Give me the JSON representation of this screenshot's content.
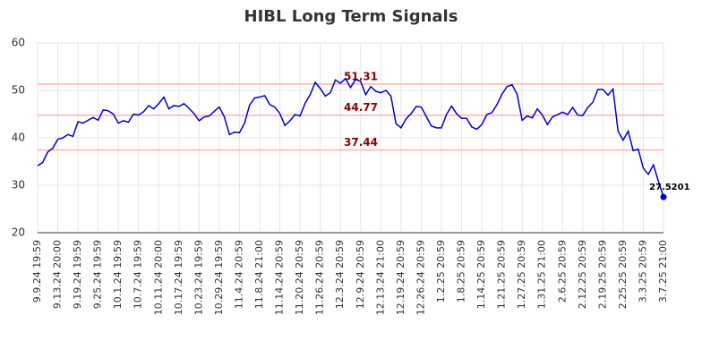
{
  "chart_data": {
    "type": "line",
    "title": "HIBL Long Term Signals",
    "categories": [
      "9.9.24 19:59",
      null,
      null,
      null,
      "9.13.24 20:00",
      null,
      null,
      null,
      "9.19.24 19:59",
      null,
      null,
      null,
      "9.25.24 19:59",
      null,
      null,
      null,
      "10.1.24 19:59",
      null,
      null,
      null,
      "10.7.24 19:59",
      null,
      null,
      null,
      "10.11.24 20:00",
      null,
      null,
      null,
      "10.17.24 19:59",
      null,
      null,
      null,
      "10.23.24 19:59",
      null,
      null,
      null,
      "10.29.24 19:59",
      null,
      null,
      null,
      "11.4.24 20:59",
      null,
      null,
      null,
      "11.8.24 21:00",
      null,
      null,
      null,
      "11.14.24 20:59",
      null,
      null,
      null,
      "11.20.24 20:59",
      null,
      null,
      null,
      "11.26.24 20:59",
      null,
      null,
      null,
      "12.3.24 20:59",
      null,
      null,
      null,
      "12.9.24 20:59",
      null,
      null,
      null,
      "12.13.24 21:00",
      null,
      null,
      null,
      "12.19.24 20:59",
      null,
      null,
      null,
      "12.26.24 20:59",
      null,
      null,
      null,
      "1.2.25 20:59",
      null,
      null,
      null,
      "1.8.25 20:59",
      null,
      null,
      null,
      "1.14.25 20:59",
      null,
      null,
      null,
      "1.21.25 20:59",
      null,
      null,
      null,
      "1.27.25 20:59",
      null,
      null,
      null,
      "1.31.25 21:00",
      null,
      null,
      null,
      "2.6.25 20:59",
      null,
      null,
      null,
      "2.12.25 20:59",
      null,
      null,
      null,
      "2.19.25 20:59",
      null,
      null,
      null,
      "2.25.25 20:59",
      null,
      null,
      null,
      "3.3.25 20:59",
      null,
      null,
      null,
      "3.7.25 21:00"
    ],
    "values": [
      34.1,
      34.8,
      37.0,
      37.8,
      39.7,
      40.0,
      40.7,
      40.3,
      43.4,
      43.1,
      43.7,
      44.3,
      43.7,
      45.9,
      45.7,
      45.0,
      43.1,
      43.6,
      43.3,
      45.0,
      44.8,
      45.5,
      46.8,
      46.1,
      47.2,
      48.6,
      46.1,
      46.8,
      46.6,
      47.2,
      46.2,
      45.1,
      43.6,
      44.4,
      44.6,
      45.6,
      46.5,
      44.4,
      40.7,
      41.2,
      41.1,
      43.1,
      46.9,
      48.4,
      48.6,
      48.9,
      47.0,
      46.5,
      45.1,
      42.6,
      43.6,
      44.9,
      44.6,
      47.3,
      49.1,
      51.7,
      50.4,
      48.8,
      49.5,
      52.2,
      51.5,
      52.5,
      50.6,
      52.3,
      51.9,
      49.1,
      50.8,
      49.8,
      49.5,
      50.0,
      48.8,
      43.0,
      42.1,
      44.0,
      45.1,
      46.6,
      46.5,
      44.5,
      42.5,
      42.1,
      42.1,
      44.9,
      46.7,
      45.1,
      44.1,
      44.1,
      42.3,
      41.8,
      42.8,
      44.9,
      45.3,
      47.0,
      49.2,
      50.8,
      51.2,
      49.2,
      43.7,
      44.6,
      44.2,
      46.1,
      44.8,
      42.8,
      44.4,
      44.9,
      45.4,
      44.9,
      46.4,
      44.8,
      44.7,
      46.4,
      47.5,
      50.2,
      50.2,
      49.0,
      50.3,
      41.4,
      39.5,
      41.4,
      37.3,
      37.6,
      33.6,
      32.3,
      34.3,
      30.8,
      27.5201
    ],
    "color": "#0000cc",
    "reference_lines": [
      51.31,
      44.77,
      37.44
    ],
    "reference_color": "#ffb3b3",
    "reference_label_color": "#8b0000",
    "ylim": [
      20,
      60
    ],
    "yticks": [
      20,
      30,
      40,
      50,
      60
    ],
    "grid": true
  }
}
